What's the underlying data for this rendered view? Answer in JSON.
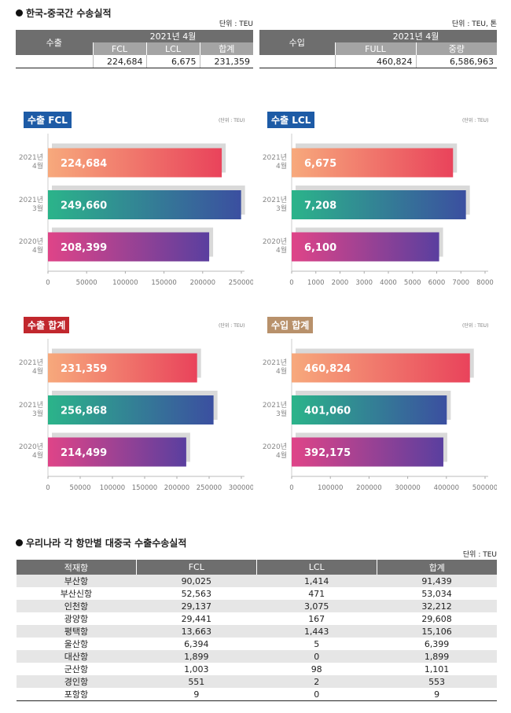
{
  "section1": {
    "title": "한국-중국간 수송실적"
  },
  "export_table": {
    "unit": "단위 : TEU",
    "label": "수출",
    "period": "2021년 4월",
    "headers": [
      "FCL",
      "LCL",
      "합계"
    ],
    "values": [
      "224,684",
      "6,675",
      "231,359"
    ]
  },
  "import_table": {
    "unit": "단위 : TEU, 톤",
    "label": "수입",
    "period": "2021년 4월",
    "headers": [
      "FULL",
      "중량"
    ],
    "values": [
      "460,824",
      "6,586,963"
    ]
  },
  "chart_data": [
    {
      "type": "bar",
      "orientation": "horizontal",
      "title": "수출 FCL",
      "unit": "(단위 : TEU)",
      "title_color": "#1d5ba6",
      "categories": [
        "2021년 4월",
        "2021년 3월",
        "2020년 4월"
      ],
      "values": [
        224684,
        249660,
        208399
      ],
      "value_labels": [
        "224,684",
        "249,660",
        "208,399"
      ],
      "colors": [
        [
          "#f7a97c",
          "#e9435b"
        ],
        [
          "#2bb48a",
          "#3b4fa0"
        ],
        [
          "#df4488",
          "#5a3f9f"
        ]
      ],
      "shadow_color": "#d9d9d9",
      "xlim": [
        0,
        250000
      ],
      "xticks": [
        0,
        50000,
        100000,
        150000,
        200000,
        250000
      ]
    },
    {
      "type": "bar",
      "orientation": "horizontal",
      "title": "수출 LCL",
      "unit": "(단위 : TEU)",
      "title_color": "#1d5ba6",
      "categories": [
        "2021년 4월",
        "2021년 3월",
        "2020년 4월"
      ],
      "values": [
        6675,
        7208,
        6100
      ],
      "value_labels": [
        "6,675",
        "7,208",
        "6,100"
      ],
      "colors": [
        [
          "#f7a97c",
          "#e9435b"
        ],
        [
          "#2bb48a",
          "#3b4fa0"
        ],
        [
          "#df4488",
          "#5a3f9f"
        ]
      ],
      "shadow_color": "#d9d9d9",
      "xlim": [
        0,
        8000
      ],
      "xticks": [
        0,
        1000,
        2000,
        3000,
        4000,
        5000,
        6000,
        7000,
        8000
      ]
    },
    {
      "type": "bar",
      "orientation": "horizontal",
      "title": "수출 합계",
      "unit": "(단위 : TEU)",
      "title_color": "#c1272d",
      "categories": [
        "2021년 4월",
        "2021년 3월",
        "2020년 4월"
      ],
      "values": [
        231359,
        256868,
        214499
      ],
      "value_labels": [
        "231,359",
        "256,868",
        "214,499"
      ],
      "colors": [
        [
          "#f7a97c",
          "#e9435b"
        ],
        [
          "#2bb48a",
          "#3b4fa0"
        ],
        [
          "#df4488",
          "#5a3f9f"
        ]
      ],
      "shadow_color": "#d9d9d9",
      "xlim": [
        0,
        300000
      ],
      "xticks": [
        0,
        50000,
        100000,
        150000,
        200000,
        250000,
        300000
      ]
    },
    {
      "type": "bar",
      "orientation": "horizontal",
      "title": "수입 합계",
      "unit": "(단위 : TEU)",
      "title_color": "#b8916b",
      "categories": [
        "2021년 4월",
        "2021년 3월",
        "2020년 4월"
      ],
      "values": [
        460824,
        401060,
        392175
      ],
      "value_labels": [
        "460,824",
        "401,060",
        "392,175"
      ],
      "colors": [
        [
          "#f7a97c",
          "#e9435b"
        ],
        [
          "#2bb48a",
          "#3b4fa0"
        ],
        [
          "#df4488",
          "#5a3f9f"
        ]
      ],
      "shadow_color": "#d9d9d9",
      "xlim": [
        0,
        500000
      ],
      "xticks": [
        0,
        100000,
        200000,
        300000,
        400000,
        500000
      ]
    }
  ],
  "section2": {
    "title": "우리나라 각 항만별 대중국 수출수송실적",
    "unit": "단위 : TEU"
  },
  "port_table": {
    "headers": [
      "적재항",
      "FCL",
      "LCL",
      "합계"
    ],
    "rows": [
      [
        "부산항",
        "90,025",
        "1,414",
        "91,439"
      ],
      [
        "부산신항",
        "52,563",
        "471",
        "53,034"
      ],
      [
        "인천항",
        "29,137",
        "3,075",
        "32,212"
      ],
      [
        "광양항",
        "29,441",
        "167",
        "29,608"
      ],
      [
        "평택항",
        "13,663",
        "1,443",
        "15,106"
      ],
      [
        "울산항",
        "6,394",
        "5",
        "6,399"
      ],
      [
        "대산항",
        "1,899",
        "0",
        "1,899"
      ],
      [
        "군산항",
        "1,003",
        "98",
        "1,101"
      ],
      [
        "경인항",
        "551",
        "2",
        "553"
      ],
      [
        "포항항",
        "9",
        "0",
        "9"
      ]
    ]
  }
}
